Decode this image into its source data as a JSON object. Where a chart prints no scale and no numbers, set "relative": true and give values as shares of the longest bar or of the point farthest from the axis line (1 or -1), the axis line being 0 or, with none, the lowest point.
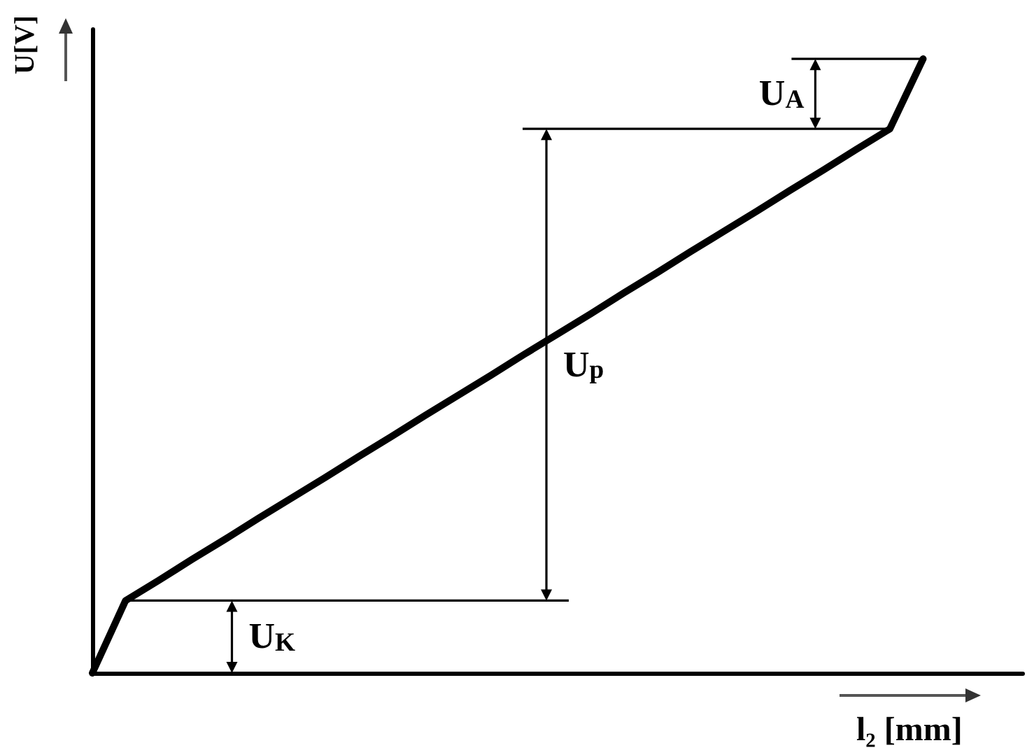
{
  "chart_data": {
    "type": "line",
    "relative": true,
    "categories": [
      null,
      null,
      null,
      null,
      null,
      null,
      null,
      null,
      null,
      null,
      null,
      null,
      null,
      null,
      null,
      null,
      null,
      null,
      null,
      null,
      null,
      null,
      null,
      null,
      null,
      null,
      null,
      null,
      null
    ],
    "values": [
      0,
      0.118,
      0.151,
      0.185,
      0.218,
      0.252,
      0.285,
      0.318,
      0.352,
      0.385,
      0.419,
      0.452,
      0.485,
      0.519,
      0.552,
      0.585,
      0.619,
      0.652,
      0.686,
      0.719,
      0.752,
      0.786,
      0.819,
      0.853,
      0.886,
      1,
      null,
      null,
      null
    ],
    "color": "#000000",
    "xlabel": "l₂ [mm]",
    "ylabel": "U[V]",
    "annotations": [
      "U$_{K}$",
      "U$_{p}$",
      "U$_{A}$"
    ],
    "ref_lines": [
      {
        "axis": "y",
        "value": 0.118,
        "color": "#000000"
      },
      {
        "axis": "y",
        "value": 0.886,
        "color": "#000000"
      },
      {
        "axis": "y",
        "value": 1,
        "color": "#000000"
      }
    ],
    "marker": "none",
    "line_style": "solid",
    "grid": false
  }
}
